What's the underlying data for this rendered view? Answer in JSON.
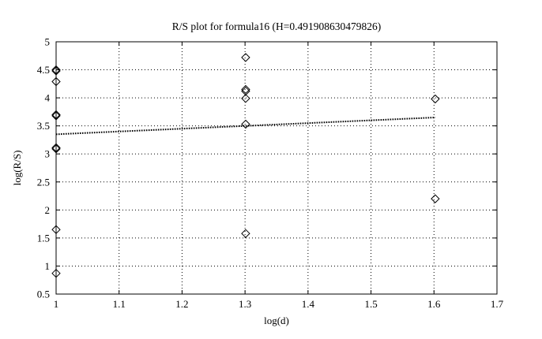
{
  "chart_data": {
    "type": "scatter",
    "title": "R/S plot for formula16 (H=0.491908630479826)",
    "xlabel": "log(d)",
    "ylabel": "log(R/S)",
    "xlim": [
      1,
      1.7
    ],
    "ylim": [
      0.5,
      5
    ],
    "xticks": [
      "1",
      "1.1",
      "1.2",
      "1.3",
      "1.4",
      "1.5",
      "1.6",
      "1.7"
    ],
    "yticks": [
      "0.5",
      "1",
      "1.5",
      "2",
      "2.5",
      "3",
      "3.5",
      "4",
      "4.5",
      "5"
    ],
    "grid": true,
    "marker": "diamond",
    "points": [
      {
        "x": 1.0,
        "y": 4.5
      },
      {
        "x": 1.0,
        "y": 4.48
      },
      {
        "x": 1.0,
        "y": 4.29
      },
      {
        "x": 1.0,
        "y": 3.7
      },
      {
        "x": 1.0,
        "y": 3.68
      },
      {
        "x": 1.0,
        "y": 3.11
      },
      {
        "x": 1.0,
        "y": 3.09
      },
      {
        "x": 1.0,
        "y": 1.65
      },
      {
        "x": 1.0,
        "y": 0.87
      },
      {
        "x": 1.301,
        "y": 4.72
      },
      {
        "x": 1.301,
        "y": 4.15
      },
      {
        "x": 1.301,
        "y": 4.12
      },
      {
        "x": 1.301,
        "y": 3.99
      },
      {
        "x": 1.301,
        "y": 3.53
      },
      {
        "x": 1.301,
        "y": 1.58
      },
      {
        "x": 1.602,
        "y": 3.98
      },
      {
        "x": 1.602,
        "y": 2.2
      }
    ],
    "fit_line": {
      "x": [
        1.0,
        1.602
      ],
      "y": [
        3.35,
        3.65
      ]
    }
  }
}
